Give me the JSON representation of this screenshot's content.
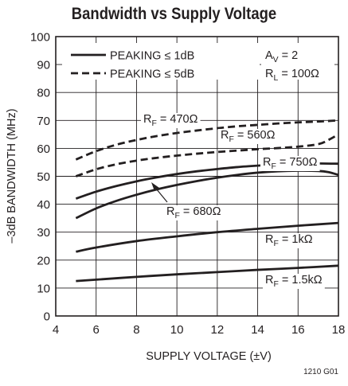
{
  "chart_data": {
    "type": "line",
    "title": "Bandwidth vs Supply Voltage",
    "xlabel": "SUPPLY VOLTAGE (±V)",
    "ylabel": "–3dB BANDWIDTH (MHz)",
    "xlim": [
      4,
      18
    ],
    "ylim": [
      0,
      100
    ],
    "xticks": [
      4,
      6,
      8,
      10,
      12,
      14,
      16,
      18
    ],
    "yticks": [
      0,
      10,
      20,
      30,
      40,
      50,
      60,
      70,
      80,
      90,
      100
    ],
    "grid": true,
    "legend": {
      "position": "top-left",
      "entries": [
        {
          "label": "PEAKING ≤ 1dB",
          "style": "solid"
        },
        {
          "label": "PEAKING ≤ 5dB",
          "style": "dashed"
        }
      ]
    },
    "conditions": [
      {
        "main": "A",
        "sub": "V",
        "tail": " = 2"
      },
      {
        "main": "R",
        "sub": "L",
        "tail": " = 100Ω"
      }
    ],
    "series": [
      {
        "label": {
          "main": "R",
          "sub": "F",
          "tail": " = 470Ω"
        },
        "style": "dashed",
        "x": [
          5,
          6,
          7,
          8,
          9,
          10,
          11,
          12,
          13,
          14,
          15,
          16,
          17,
          18
        ],
        "y": [
          56,
          59,
          61.3,
          63,
          64.4,
          65.5,
          66.4,
          67.2,
          67.9,
          68.4,
          68.9,
          69.3,
          69.6,
          70
        ]
      },
      {
        "label": {
          "main": "R",
          "sub": "F",
          "tail": " = 560Ω"
        },
        "style": "dashed",
        "x": [
          5,
          6,
          7,
          8,
          9,
          10,
          11,
          12,
          13,
          14,
          15,
          16,
          17,
          17.5,
          18
        ],
        "y": [
          50,
          52.5,
          54.3,
          55.6,
          56.6,
          57.4,
          58.1,
          58.7,
          59.2,
          59.7,
          60.1,
          60.6,
          61.5,
          63,
          65
        ]
      },
      {
        "label": {
          "main": "R",
          "sub": "F",
          "tail": " = 750Ω"
        },
        "style": "solid",
        "x": [
          5,
          6,
          7,
          8,
          9,
          10,
          11,
          12,
          13,
          14,
          15,
          16,
          17,
          18
        ],
        "y": [
          42,
          44.5,
          46.5,
          48.2,
          49.6,
          50.8,
          51.8,
          52.6,
          53.3,
          53.8,
          54.2,
          54.5,
          54.6,
          54.5
        ]
      },
      {
        "label": {
          "main": "R",
          "sub": "F",
          "tail": " = 680Ω"
        },
        "style": "solid",
        "x": [
          5,
          6,
          7,
          8,
          9,
          10,
          11,
          12,
          13,
          14,
          15,
          16,
          17,
          17.5,
          18
        ],
        "y": [
          35,
          38.5,
          41.2,
          43.4,
          45.3,
          46.9,
          48.3,
          49.5,
          50.5,
          51.3,
          51.8,
          52,
          51.9,
          51.5,
          50.5
        ]
      },
      {
        "label": {
          "main": "R",
          "sub": "F",
          "tail": " = 1kΩ"
        },
        "style": "solid",
        "x": [
          5,
          6,
          8,
          10,
          12,
          14,
          16,
          18
        ],
        "y": [
          23,
          24.5,
          26.8,
          28.5,
          30,
          31.2,
          32.3,
          33.3
        ]
      },
      {
        "label": {
          "main": "R",
          "sub": "F",
          "tail": " = 1.5kΩ"
        },
        "style": "solid",
        "x": [
          5,
          6,
          8,
          10,
          12,
          14,
          16,
          18
        ],
        "y": [
          12.5,
          13,
          14,
          14.9,
          15.7,
          16.5,
          17.2,
          18
        ]
      }
    ]
  },
  "figure_id": "1210 G01"
}
